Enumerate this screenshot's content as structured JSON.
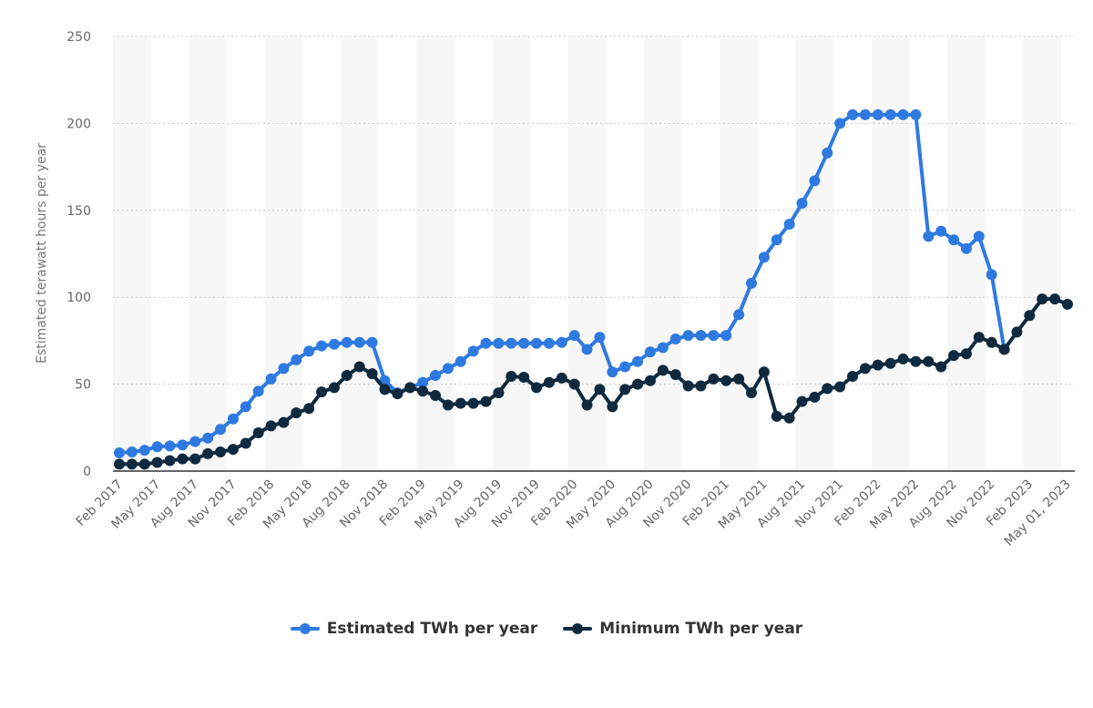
{
  "chart_data": {
    "type": "line",
    "title": "",
    "xlabel": "",
    "ylabel": "Estimated terawatt hours per year",
    "ylim": [
      0,
      250
    ],
    "yticks": [
      0,
      50,
      100,
      150,
      200,
      250
    ],
    "grid": true,
    "legend_position": "bottom",
    "x_tick_labels": [
      "Feb 2017",
      "May 2017",
      "Aug 2017",
      "Nov 2017",
      "Feb 2018",
      "May 2018",
      "Aug 2018",
      "Nov 2018",
      "Feb 2019",
      "May 2019",
      "Aug 2019",
      "Nov 2019",
      "Feb 2020",
      "May 2020",
      "Aug 2020",
      "Nov 2020",
      "Feb 2021",
      "May 2021",
      "Aug 2021",
      "Nov 2021",
      "Feb 2022",
      "May 2022",
      "Aug 2022",
      "Nov 2022",
      "Feb 2023",
      "May 01, 2023"
    ],
    "x": [
      "2017-02",
      "2017-03",
      "2017-04",
      "2017-05",
      "2017-06",
      "2017-07",
      "2017-08",
      "2017-09",
      "2017-10",
      "2017-11",
      "2017-12",
      "2018-01",
      "2018-02",
      "2018-03",
      "2018-04",
      "2018-05",
      "2018-06",
      "2018-07",
      "2018-08",
      "2018-09",
      "2018-10",
      "2018-11",
      "2018-12",
      "2019-01",
      "2019-02",
      "2019-03",
      "2019-04",
      "2019-05",
      "2019-06",
      "2019-07",
      "2019-08",
      "2019-09",
      "2019-10",
      "2019-11",
      "2019-12",
      "2020-01",
      "2020-02",
      "2020-03",
      "2020-04",
      "2020-05",
      "2020-06",
      "2020-07",
      "2020-08",
      "2020-09",
      "2020-10",
      "2020-11",
      "2020-12",
      "2021-01",
      "2021-02",
      "2021-03",
      "2021-04",
      "2021-05",
      "2021-06",
      "2021-07",
      "2021-08",
      "2021-09",
      "2021-10",
      "2021-11",
      "2021-12",
      "2022-01",
      "2022-02",
      "2022-03",
      "2022-04",
      "2022-05",
      "2022-06",
      "2022-07",
      "2022-08",
      "2022-09",
      "2022-10",
      "2022-11",
      "2022-12",
      "2023-01",
      "2023-02",
      "2023-03",
      "2023-04",
      "2023-05-01"
    ],
    "series": [
      {
        "name": "Estimated TWh per year",
        "color": "#2f7ae0",
        "values": [
          10.5,
          11,
          12,
          14,
          14.5,
          15,
          17,
          19,
          24,
          30,
          37,
          46,
          53,
          59,
          64,
          69,
          72,
          73,
          74,
          74,
          74,
          52,
          45,
          48,
          51,
          55,
          59,
          63,
          69,
          73.5,
          73.5,
          73.5,
          73.5,
          73.5,
          73.5,
          74,
          78,
          70,
          77,
          57,
          60,
          63,
          68.5,
          71,
          76,
          78,
          78,
          78,
          78,
          90,
          108,
          123,
          133,
          142,
          154,
          167,
          183,
          200,
          205,
          205,
          205,
          205,
          205,
          205,
          135,
          138,
          133,
          128,
          135,
          113,
          70,
          null,
          null,
          null,
          null,
          null
        ]
      },
      {
        "name": "Minimum TWh per year",
        "color": "#0f2a3f",
        "values": [
          4,
          4,
          4,
          5,
          6,
          7,
          7,
          10,
          11,
          12.5,
          16,
          22,
          26,
          28,
          33.5,
          36,
          45.5,
          48,
          55,
          60,
          56,
          47,
          44.5,
          48,
          46,
          43.5,
          38,
          39,
          39,
          40,
          45,
          54.5,
          54,
          48,
          51,
          53.5,
          50,
          38,
          47,
          37,
          47,
          50,
          52,
          58,
          55.5,
          49,
          49,
          53,
          52,
          53,
          45,
          57,
          31.5,
          30.5,
          40,
          42.5,
          47.5,
          48.5,
          54.5,
          59,
          61,
          62,
          64.5,
          63,
          63,
          60,
          66.5,
          67.5,
          77,
          74,
          70,
          80,
          89.5,
          99,
          99,
          96
        ]
      }
    ]
  }
}
